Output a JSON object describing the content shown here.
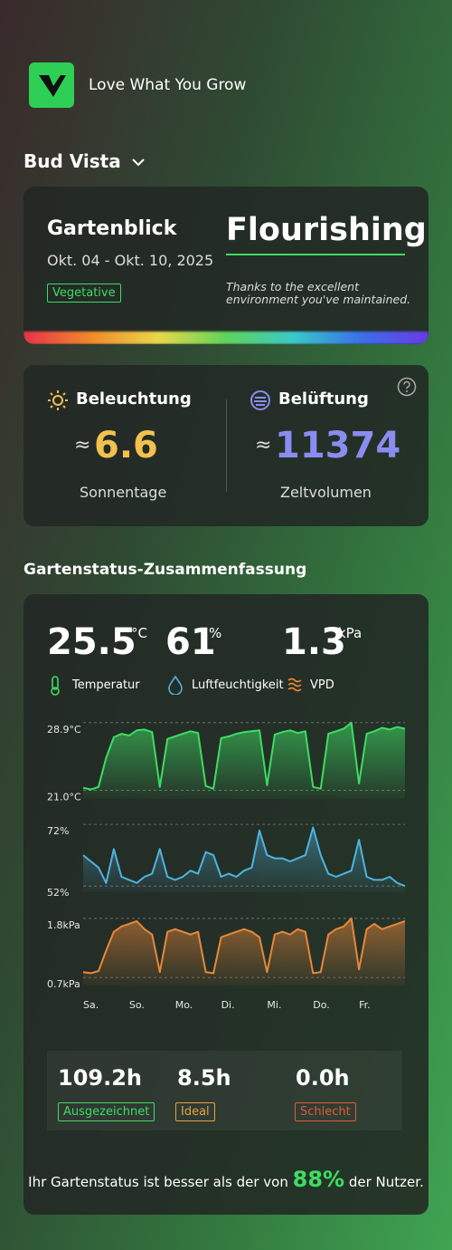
{
  "app": {
    "name": "Love What You Grow"
  },
  "garden": {
    "name": "Bud Vista"
  },
  "overview": {
    "title": "Gartenblick",
    "date_range": "Okt. 04 - Okt. 10, 2025",
    "stage": "Vegetative",
    "status": "Flourishing",
    "note": "Thanks to the excellent environment you've maintained."
  },
  "stats": {
    "approx": "≈",
    "lighting": {
      "title": "Beleuchtung",
      "value": 6.6,
      "label": "Sonnentage"
    },
    "ventilation": {
      "title": "Belüftung",
      "value": 11374,
      "label": "Zeltvolumen"
    }
  },
  "summary": {
    "title": "Gartenstatus-Zusammenfassung",
    "metrics": [
      {
        "value": 25.5,
        "unit": "°C",
        "label": "Temperatur"
      },
      {
        "value": 61,
        "unit": "%",
        "label": "Luftfeuchtigkeit"
      },
      {
        "value": 1.3,
        "unit": "kPa",
        "label": "VPD"
      }
    ],
    "hours": [
      {
        "value": "109.2h",
        "label": "Ausgezeichnet"
      },
      {
        "value": "8.5h",
        "label": "Ideal"
      },
      {
        "value": "0.0h",
        "label": "Schlecht"
      }
    ],
    "footer": {
      "before": "Ihr Gartenstatus ist besser als der von",
      "percent": "88%",
      "after": "der Nutzer."
    }
  },
  "chart_data": [
    {
      "type": "line",
      "color": "#3ddc63",
      "x": [
        0,
        4,
        8,
        12,
        16,
        20,
        24,
        28,
        32,
        36,
        40,
        44,
        48,
        52,
        56,
        60,
        64,
        68,
        72,
        76,
        80,
        84,
        88,
        92,
        96,
        100,
        104,
        108,
        112,
        116,
        120,
        124,
        128,
        132,
        136,
        140,
        144,
        148,
        152,
        156,
        160,
        164,
        168
      ],
      "values": [
        21.3,
        21.1,
        21.4,
        24.8,
        27.2,
        27.6,
        27.4,
        28.0,
        28.1,
        27.8,
        21.4,
        27.0,
        27.3,
        27.6,
        27.9,
        27.7,
        21.5,
        21.2,
        27.1,
        27.3,
        27.6,
        27.8,
        27.9,
        28.0,
        21.6,
        27.5,
        27.8,
        28.0,
        27.7,
        27.9,
        21.4,
        21.2,
        27.6,
        27.9,
        28.2,
        28.9,
        21.8,
        27.6,
        27.9,
        28.3,
        28.1,
        28.4,
        28.2
      ],
      "xlim": [
        0,
        168
      ],
      "ylim": [
        20,
        29.2
      ],
      "yticks": [
        {
          "value": 28.9,
          "label": "28.9°C"
        },
        {
          "value": 21.0,
          "label": "21.0°C"
        }
      ],
      "grid": true
    },
    {
      "type": "line",
      "color": "#4fb3e0",
      "x": [
        0,
        4,
        8,
        12,
        16,
        20,
        24,
        28,
        32,
        36,
        40,
        44,
        48,
        52,
        56,
        60,
        64,
        68,
        72,
        76,
        80,
        84,
        88,
        92,
        96,
        100,
        104,
        108,
        112,
        116,
        120,
        124,
        128,
        132,
        136,
        140,
        144,
        148,
        152,
        156,
        160,
        164,
        168
      ],
      "values": [
        62,
        60,
        58,
        53,
        64,
        55,
        54,
        53,
        55,
        56,
        64,
        55,
        54,
        55,
        57,
        56,
        63,
        62,
        55,
        56,
        55,
        57,
        58,
        70,
        62,
        61,
        61,
        60,
        61,
        62,
        71,
        62,
        56,
        55,
        56,
        57,
        67,
        55,
        54,
        54,
        55,
        53,
        52
      ],
      "xlim": [
        0,
        168
      ],
      "ylim": [
        50,
        73.5
      ],
      "yticks": [
        {
          "value": 72,
          "label": "72%"
        },
        {
          "value": 52,
          "label": "52%"
        }
      ],
      "grid": true
    },
    {
      "type": "line",
      "color": "#e8873a",
      "x": [
        0,
        4,
        8,
        12,
        16,
        20,
        24,
        28,
        32,
        36,
        40,
        44,
        48,
        52,
        56,
        60,
        64,
        68,
        72,
        76,
        80,
        84,
        88,
        92,
        96,
        100,
        104,
        108,
        112,
        116,
        120,
        124,
        128,
        132,
        136,
        140,
        144,
        148,
        152,
        156,
        160,
        164,
        168
      ],
      "values": [
        0.8,
        0.78,
        0.82,
        1.2,
        1.55,
        1.65,
        1.7,
        1.75,
        1.6,
        1.5,
        0.8,
        1.55,
        1.6,
        1.55,
        1.5,
        1.55,
        0.8,
        0.78,
        1.45,
        1.5,
        1.55,
        1.6,
        1.55,
        1.45,
        0.8,
        1.5,
        1.55,
        1.5,
        1.6,
        1.55,
        0.78,
        0.8,
        1.5,
        1.6,
        1.65,
        1.8,
        0.85,
        1.6,
        1.7,
        1.6,
        1.65,
        1.7,
        1.75
      ],
      "xlim": [
        0,
        168
      ],
      "ylim": [
        0.55,
        1.9
      ],
      "yticks": [
        {
          "value": 1.8,
          "label": "1.8kPa"
        },
        {
          "value": 0.7,
          "label": "0.7kPa"
        }
      ],
      "xticks": [
        {
          "value": 0,
          "label": "Sa."
        },
        {
          "value": 24,
          "label": "So."
        },
        {
          "value": 48,
          "label": "Mo."
        },
        {
          "value": 72,
          "label": "Di."
        },
        {
          "value": 96,
          "label": "Mi."
        },
        {
          "value": 120,
          "label": "Do."
        },
        {
          "value": 144,
          "label": "Fr."
        }
      ],
      "grid": true
    }
  ]
}
